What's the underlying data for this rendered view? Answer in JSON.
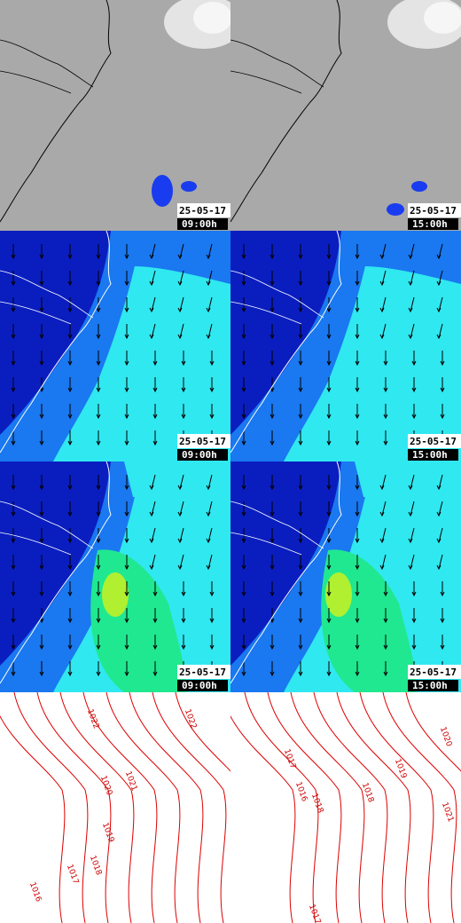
{
  "panels": [
    {
      "left": {
        "date": "25-05-17",
        "time": "09:00h"
      },
      "right": {
        "date": "25-05-17",
        "time": "15:00h"
      }
    },
    {
      "left": {
        "date": "25-05-17",
        "time": "09:00h"
      },
      "right": {
        "date": "25-05-17",
        "time": "15:00h"
      }
    },
    {
      "left": {
        "date": "25-05-17",
        "time": "09:00h"
      },
      "right": {
        "date": "25-05-17",
        "time": "15:00h"
      }
    },
    {
      "left": {
        "isobar_labels": [
          "1022",
          "1022",
          "1021",
          "1020",
          "1019",
          "1018",
          "1017",
          "1016"
        ]
      },
      "right": {
        "isobar_labels": [
          "1020",
          "1017",
          "1019",
          "1016",
          "1018",
          "1018",
          "1021",
          "1017"
        ]
      }
    }
  ]
}
